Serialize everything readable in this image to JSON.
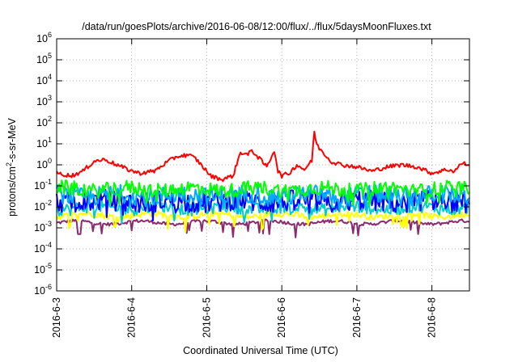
{
  "chart_data": {
    "type": "line",
    "title": "/data/run/goesPlots/archive/2016-06-08/12:00/flux/../flux/5daysMoonFluxes.txt",
    "xlabel": "Coordinated Universal Time (UTC)",
    "ylabel": {
      "base": "protons/cm",
      "superscript": "2",
      "suffix": "-s-sr-MeV"
    },
    "yscale": "log",
    "ylim": [
      1e-06,
      1000000.0
    ],
    "y_ticks": [
      {
        "value": 1e-06,
        "base": "10",
        "exp": "-6"
      },
      {
        "value": 1e-05,
        "base": "10",
        "exp": "-5"
      },
      {
        "value": 0.0001,
        "base": "10",
        "exp": "-4"
      },
      {
        "value": 0.001,
        "base": "10",
        "exp": "-3"
      },
      {
        "value": 0.01,
        "base": "10",
        "exp": "-2"
      },
      {
        "value": 0.1,
        "base": "10",
        "exp": "-1"
      },
      {
        "value": 1,
        "base": "10",
        "exp": "0"
      },
      {
        "value": 10,
        "base": "10",
        "exp": "1"
      },
      {
        "value": 100,
        "base": "10",
        "exp": "2"
      },
      {
        "value": 1000,
        "base": "10",
        "exp": "3"
      },
      {
        "value": 10000,
        "base": "10",
        "exp": "4"
      },
      {
        "value": 100000,
        "base": "10",
        "exp": "5"
      },
      {
        "value": 1000000,
        "base": "10",
        "exp": "6"
      }
    ],
    "xlim": [
      0,
      5.5
    ],
    "x_ticks": [
      {
        "value": 0,
        "label": "2016-6-3"
      },
      {
        "value": 1,
        "label": "2016-6-4"
      },
      {
        "value": 2,
        "label": "2016-6-5"
      },
      {
        "value": 3,
        "label": "2016-6-6"
      },
      {
        "value": 4,
        "label": "2016-6-7"
      },
      {
        "value": 5,
        "label": "2016-6-8"
      }
    ],
    "grid": true,
    "series": [
      {
        "color": "#ff0000",
        "base": 0.8,
        "noise": 0.1,
        "points": [
          [
            0,
            0.4
          ],
          [
            0.2,
            0.3
          ],
          [
            0.35,
            0.5
          ],
          [
            0.5,
            1.5
          ],
          [
            0.65,
            1.8
          ],
          [
            0.8,
            1.0
          ],
          [
            0.95,
            0.6
          ],
          [
            1.1,
            0.4
          ],
          [
            1.3,
            0.5
          ],
          [
            1.45,
            1.2
          ],
          [
            1.6,
            2.5
          ],
          [
            1.75,
            3.0
          ],
          [
            1.85,
            2.0
          ],
          [
            1.95,
            0.8
          ],
          [
            2.05,
            0.3
          ],
          [
            2.2,
            0.2
          ],
          [
            2.35,
            0.3
          ],
          [
            2.45,
            4.0
          ],
          [
            2.55,
            3.0
          ],
          [
            2.6,
            5.0
          ],
          [
            2.7,
            2.0
          ],
          [
            2.8,
            0.8
          ],
          [
            2.9,
            5.0
          ],
          [
            2.95,
            0.5
          ],
          [
            3.0,
            0.3
          ],
          [
            3.1,
            0.4
          ],
          [
            3.2,
            1.0
          ],
          [
            3.3,
            0.6
          ],
          [
            3.4,
            1.5
          ],
          [
            3.43,
            40
          ],
          [
            3.47,
            8
          ],
          [
            3.55,
            4
          ],
          [
            3.65,
            1.5
          ],
          [
            3.8,
            1.0
          ],
          [
            4.0,
            0.8
          ],
          [
            4.2,
            0.5
          ],
          [
            4.4,
            0.8
          ],
          [
            4.6,
            1.0
          ],
          [
            4.8,
            0.8
          ],
          [
            5.0,
            0.4
          ],
          [
            5.2,
            0.6
          ],
          [
            5.3,
            0.5
          ],
          [
            5.4,
            1.2
          ],
          [
            5.5,
            1.0
          ]
        ]
      },
      {
        "color": "#00ff00",
        "base": 0.07,
        "noise": 0.35,
        "points": []
      },
      {
        "color": "#00aaff",
        "base": 0.035,
        "noise": 0.45,
        "points": []
      },
      {
        "color": "#0000ff",
        "base": 0.018,
        "noise": 0.5,
        "points": []
      },
      {
        "color": "#00cccc",
        "base": 0.009,
        "noise": 0.3,
        "points": []
      },
      {
        "color": "#ffff00",
        "base": 0.004,
        "noise": 0.15,
        "points": []
      },
      {
        "color": "#8b2a6e",
        "base": 0.0018,
        "noise": 0.08,
        "points": []
      }
    ]
  }
}
